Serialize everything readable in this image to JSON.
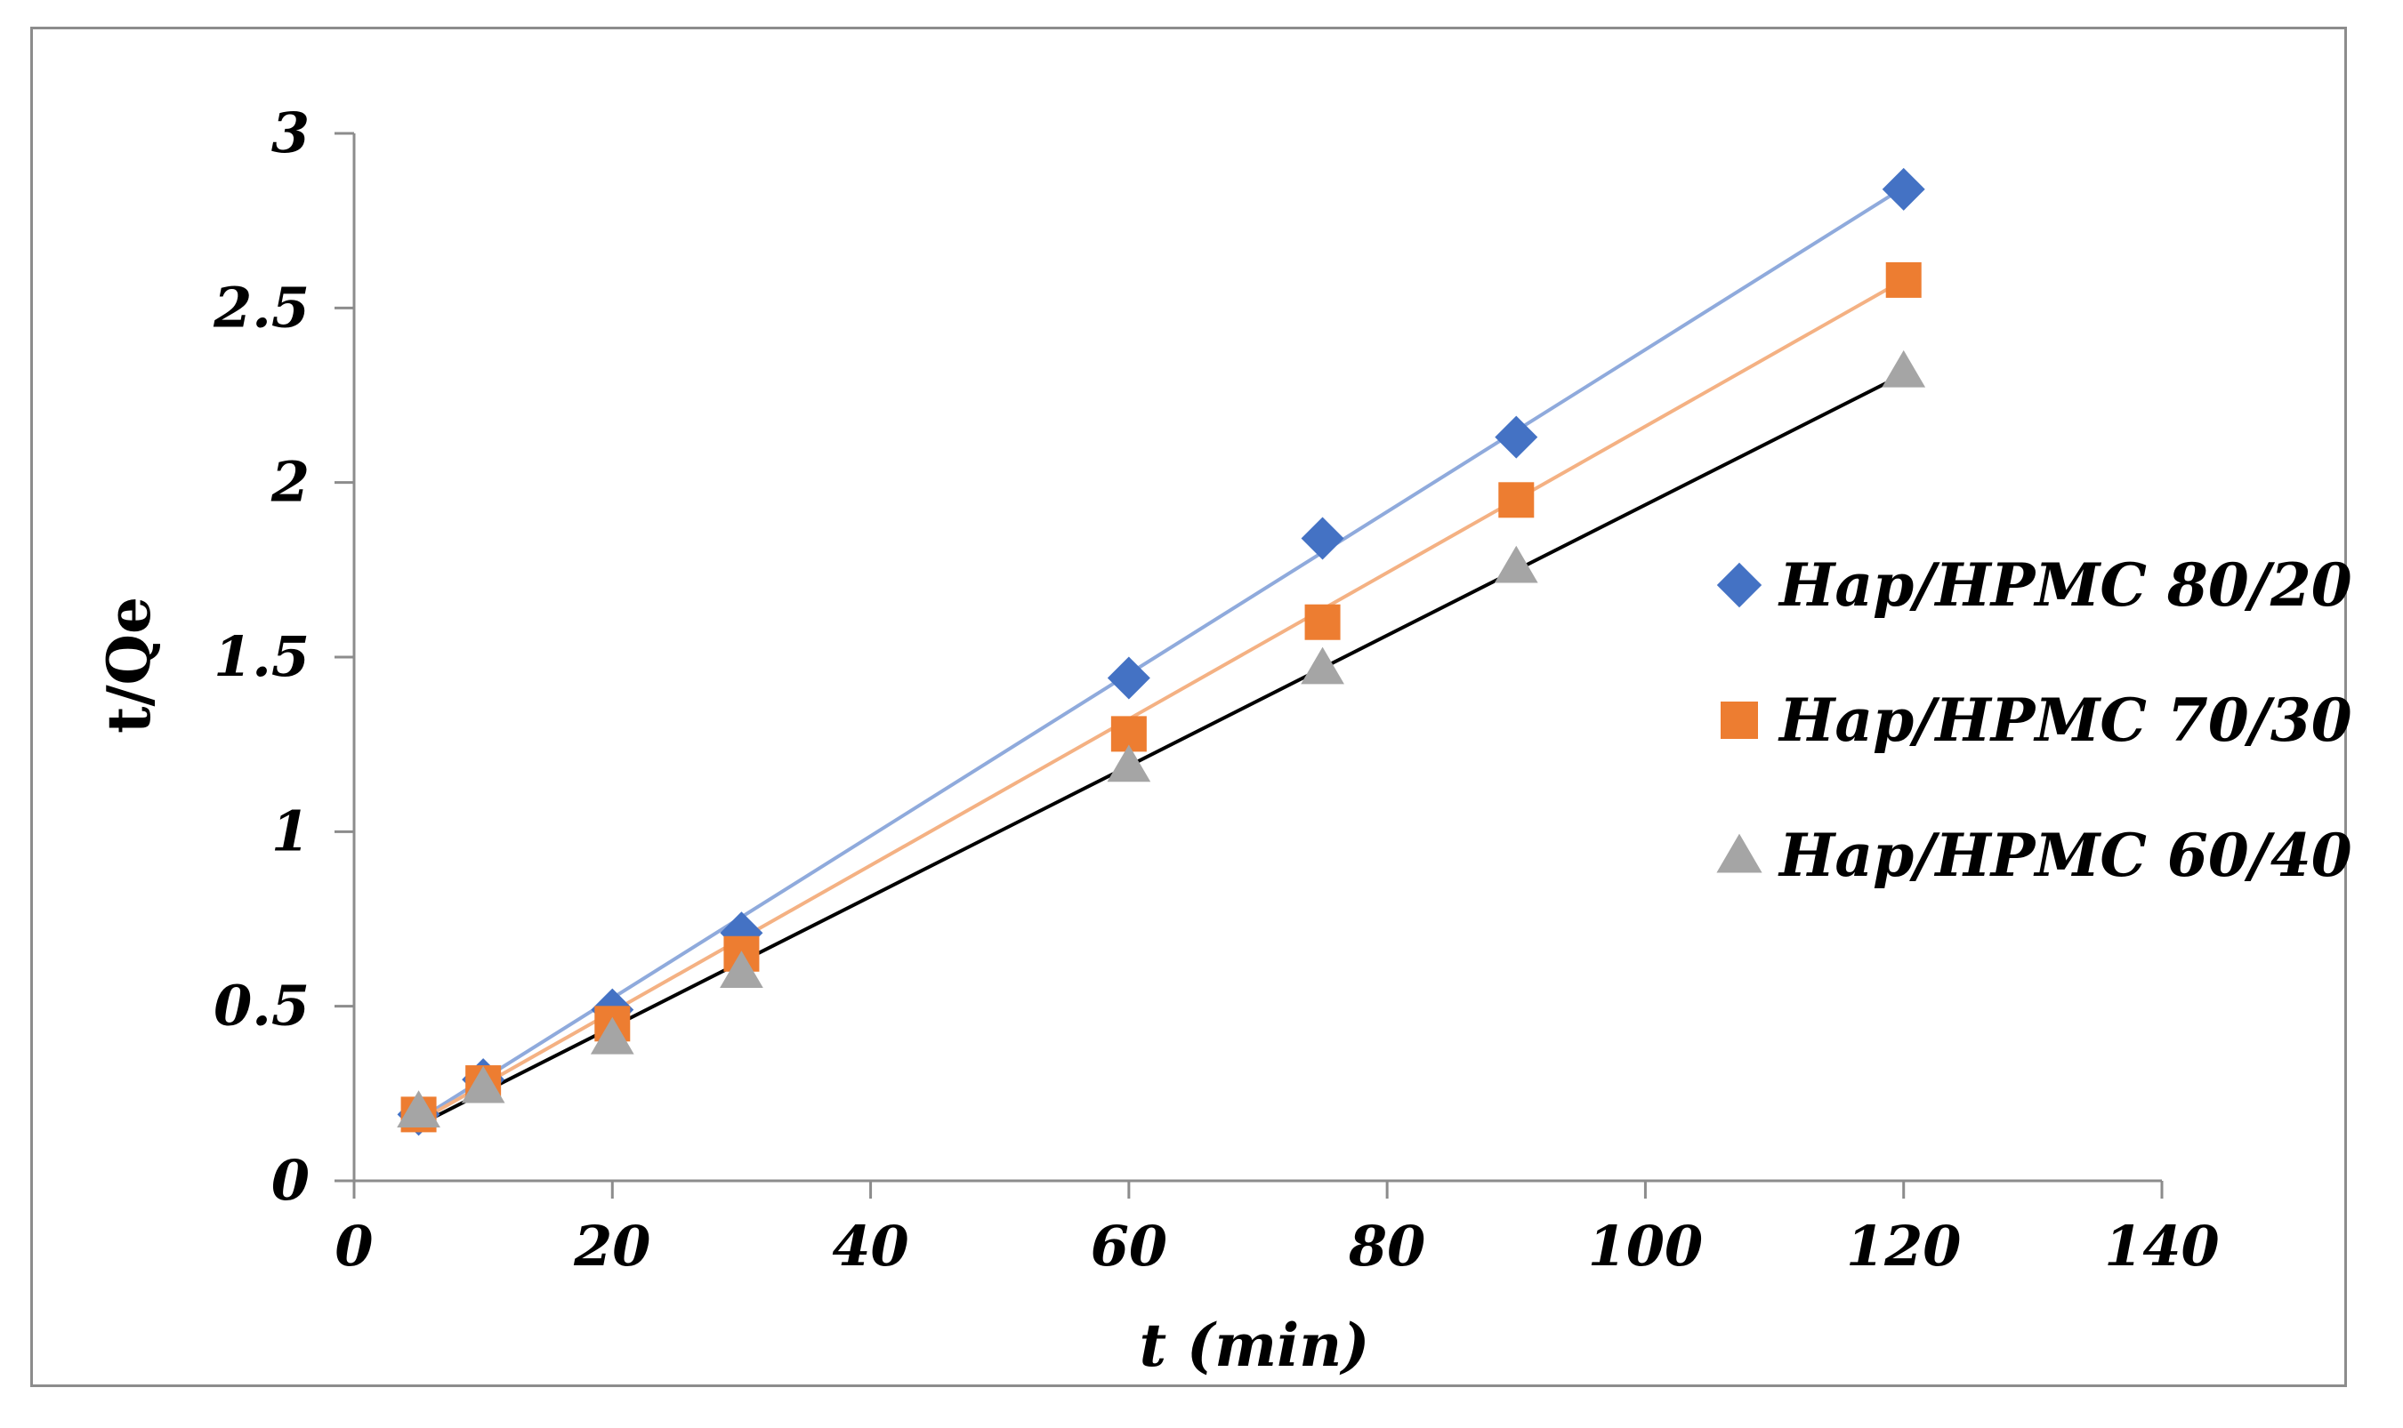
{
  "chart_data": {
    "type": "scatter",
    "title": "",
    "xlabel": "t (min)",
    "ylabel": "t/Qe",
    "xlim": [
      0,
      140
    ],
    "ylim": [
      0,
      3
    ],
    "xticks": [
      0,
      20,
      40,
      60,
      80,
      100,
      120,
      140
    ],
    "yticks": [
      0,
      0.5,
      1,
      1.5,
      2,
      2.5,
      3
    ],
    "ytick_labels": [
      "0",
      "0.5",
      "1",
      "1.5",
      "2",
      "2.5",
      "3"
    ],
    "grid": false,
    "legend_position": "right",
    "x": [
      5,
      10,
      20,
      30,
      60,
      75,
      90,
      120
    ],
    "series": [
      {
        "name": "Hap/HPMC 80/20",
        "marker": "diamond",
        "color": "#4472c4",
        "trend_color": "#8faadc",
        "values": [
          0.19,
          0.29,
          0.49,
          0.71,
          1.44,
          1.84,
          2.13,
          2.84
        ],
        "trendline": [
          0.175,
          2.845
        ]
      },
      {
        "name": "Hap/HPMC 70/30",
        "marker": "square",
        "color": "#ed7d31",
        "trend_color": "#f4b183",
        "values": [
          0.19,
          0.28,
          0.45,
          0.65,
          1.28,
          1.6,
          1.95,
          2.58
        ],
        "trendline": [
          0.17,
          2.58
        ]
      },
      {
        "name": "Hap/HPMC 60/40",
        "marker": "triangle",
        "color": "#a5a5a5",
        "trend_color": "#000000",
        "values": [
          0.2,
          0.27,
          0.41,
          0.6,
          1.19,
          1.47,
          1.76,
          2.32
        ],
        "trendline": [
          0.16,
          2.31
        ]
      }
    ]
  }
}
